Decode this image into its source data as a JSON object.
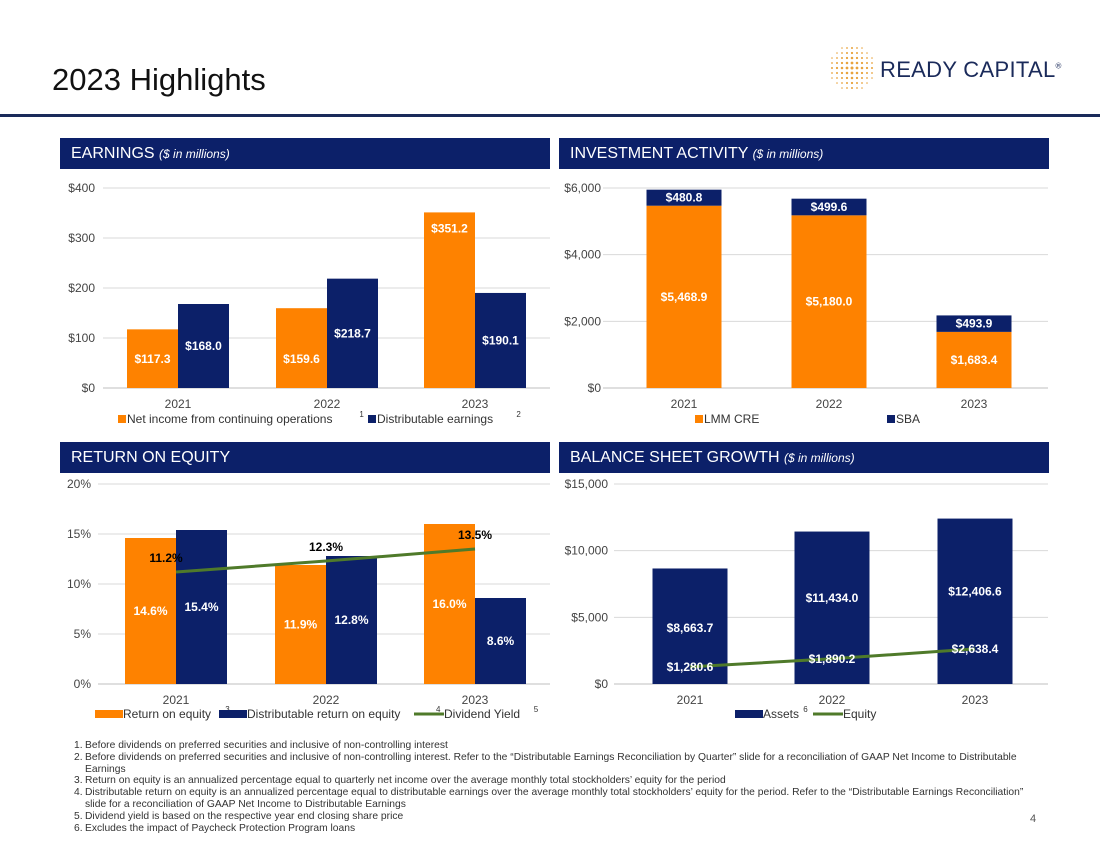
{
  "page_title": "2023 Highlights",
  "page_number": "4",
  "logo": {
    "text": "READY CAPITAL",
    "mark": "®"
  },
  "colors": {
    "navy": "#0c2069",
    "orange": "#fe8200",
    "green": "#4f7a2a",
    "grid": "#d9d9d9",
    "gold": "#e8a33c"
  },
  "panels": {
    "earnings": {
      "title": "EARNINGS",
      "subtitle": "($ in millions)"
    },
    "investment": {
      "title": "INVESTMENT ACTIVITY",
      "subtitle": "($ in millions)"
    },
    "roe": {
      "title": "RETURN ON EQUITY",
      "subtitle": ""
    },
    "balance": {
      "title": "BALANCE SHEET GROWTH",
      "subtitle": "($ in millions)"
    }
  },
  "footnotes": [
    {
      "num": "1.",
      "text": "Before dividends on preferred securities and inclusive of non-controlling interest"
    },
    {
      "num": "2.",
      "text": "Before dividends on preferred securities and inclusive of non-controlling interest. Refer to the “Distributable Earnings Reconciliation by Quarter” slide for a reconciliation of GAAP Net Income to Distributable Earnings"
    },
    {
      "num": "3.",
      "text": "Return on equity is an annualized percentage equal to quarterly net income over the average monthly total stockholders’ equity for the period"
    },
    {
      "num": "4.",
      "text": "Distributable return on equity is an annualized percentage equal to distributable earnings over the average monthly total stockholders’ equity for the period. Refer to the “Distributable Earnings Reconciliation” slide for a reconciliation of GAAP Net Income to Distributable Earnings"
    },
    {
      "num": "5.",
      "text": "Dividend yield is based on the respective year end closing share price"
    },
    {
      "num": "6.",
      "text": "Excludes the impact of Paycheck Protection Program loans"
    }
  ],
  "chart_data": [
    {
      "id": "earnings",
      "type": "bar",
      "title": "EARNINGS ($ in millions)",
      "categories": [
        "2021",
        "2022",
        "2023"
      ],
      "ylim": [
        0,
        400
      ],
      "yticks": [
        0,
        100,
        200,
        300,
        400
      ],
      "ytick_labels": [
        "$0",
        "$100",
        "$200",
        "$300",
        "$400"
      ],
      "series": [
        {
          "name": "Net income from continuing operations",
          "footnote": "1",
          "color": "#fe8200",
          "values": [
            117.3,
            159.6,
            351.2
          ],
          "labels": [
            "$117.3",
            "$159.6",
            "$351.2"
          ]
        },
        {
          "name": "Distributable earnings",
          "footnote": "2",
          "color": "#0c2069",
          "values": [
            168.0,
            218.7,
            190.1
          ],
          "labels": [
            "$168.0",
            "$218.7",
            "$190.1"
          ]
        }
      ]
    },
    {
      "id": "investment",
      "type": "stacked-bar",
      "title": "INVESTMENT ACTIVITY ($ in millions)",
      "categories": [
        "2021",
        "2022",
        "2023"
      ],
      "ylim": [
        0,
        6000
      ],
      "yticks": [
        0,
        2000,
        4000,
        6000
      ],
      "ytick_labels": [
        "$0",
        "$2,000",
        "$4,000",
        "$6,000"
      ],
      "series": [
        {
          "name": "LMM CRE",
          "footnote": "",
          "color": "#fe8200",
          "values": [
            5468.9,
            5180.0,
            1683.4
          ],
          "labels": [
            "$5,468.9",
            "$5,180.0",
            "$1,683.4"
          ]
        },
        {
          "name": "SBA",
          "footnote": "",
          "color": "#0c2069",
          "values": [
            480.8,
            499.6,
            493.9
          ],
          "labels": [
            "$480.8",
            "$499.6",
            "$493.9"
          ]
        }
      ]
    },
    {
      "id": "roe",
      "type": "bar+line",
      "title": "RETURN ON EQUITY",
      "categories": [
        "2021",
        "2022",
        "2023"
      ],
      "ylim": [
        0,
        20
      ],
      "yticks": [
        0,
        5,
        10,
        15,
        20
      ],
      "ytick_labels": [
        "0%",
        "5%",
        "10%",
        "15%",
        "20%"
      ],
      "series": [
        {
          "name": "Return on equity",
          "footnote": "3",
          "color": "#fe8200",
          "values": [
            14.6,
            11.9,
            16.0
          ],
          "labels": [
            "14.6%",
            "11.9%",
            "16.0%"
          ]
        },
        {
          "name": "Distributable return on equity",
          "footnote": "4",
          "color": "#0c2069",
          "values": [
            15.4,
            12.8,
            8.6
          ],
          "labels": [
            "15.4%",
            "12.8%",
            "8.6%"
          ]
        }
      ],
      "line": {
        "name": "Dividend Yield",
        "footnote": "5",
        "color": "#4f7a2a",
        "values": [
          11.2,
          12.3,
          13.5
        ],
        "labels": [
          "11.2%",
          "12.3%",
          "13.5%"
        ]
      }
    },
    {
      "id": "balance",
      "type": "bar+line",
      "title": "BALANCE SHEET GROWTH ($ in millions)",
      "categories": [
        "2021",
        "2022",
        "2023"
      ],
      "ylim": [
        0,
        15000
      ],
      "yticks": [
        0,
        5000,
        10000,
        15000
      ],
      "ytick_labels": [
        "$0",
        "$5,000",
        "$10,000",
        "$15,000"
      ],
      "series": [
        {
          "name": "Assets",
          "footnote": "6",
          "color": "#0c2069",
          "values": [
            8663.7,
            11434.0,
            12406.6
          ],
          "labels": [
            "$8,663.7",
            "$11,434.0",
            "$12,406.6"
          ]
        }
      ],
      "line": {
        "name": "Equity",
        "footnote": "",
        "color": "#4f7a2a",
        "values": [
          1280.6,
          1890.2,
          2638.4
        ],
        "labels": [
          "$1,280.6",
          "$1,890.2",
          "$2,638.4"
        ]
      }
    }
  ]
}
